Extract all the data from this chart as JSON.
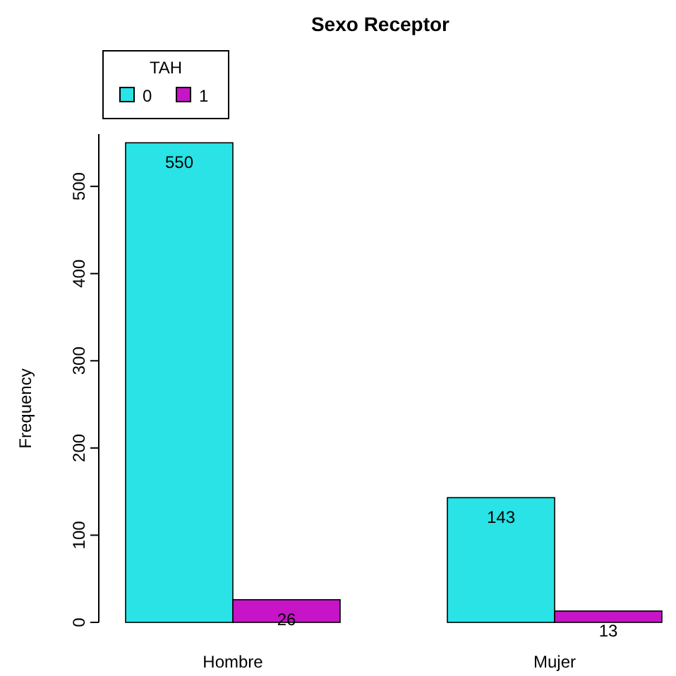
{
  "chart_data": {
    "type": "bar",
    "title": "Sexo Receptor",
    "ylabel": "Frequency",
    "legend_title": "TAH",
    "categories": [
      "Hombre",
      "Mujer"
    ],
    "series": [
      {
        "name": "0",
        "color": "#29e3e6",
        "values": [
          550,
          143
        ]
      },
      {
        "name": "1",
        "color": "#c614c6",
        "values": [
          26,
          13
        ]
      }
    ],
    "ylim": [
      0,
      560
    ],
    "yticks": [
      0,
      100,
      200,
      300,
      400,
      500
    ],
    "data_labels": true,
    "legend": "top left",
    "grid": false
  }
}
